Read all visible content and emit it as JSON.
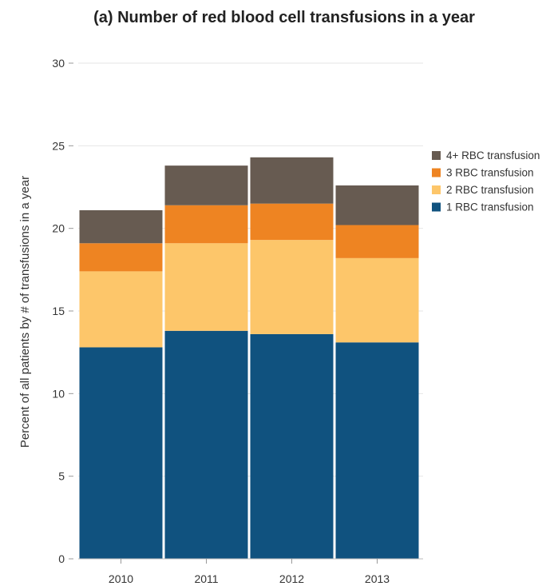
{
  "chart_data": {
    "type": "bar",
    "stacked": true,
    "title": "(a)  Number of red blood cell transfusions in a year",
    "xlabel": "",
    "ylabel": "Percent of all patients by # of transfusions in a year",
    "categories": [
      "2010",
      "2011",
      "2012",
      "2013"
    ],
    "ylim": [
      0,
      30
    ],
    "yticks": [
      0,
      5,
      10,
      15,
      20,
      25,
      30
    ],
    "grid": true,
    "legend_position": "right",
    "series": [
      {
        "name": "1 RBC transfusion",
        "color": "#10527f",
        "values": [
          12.8,
          13.8,
          13.6,
          13.1
        ]
      },
      {
        "name": "2 RBC transfusion",
        "color": "#fdc66a",
        "values": [
          4.6,
          5.3,
          5.7,
          5.1
        ]
      },
      {
        "name": "3 RBC transfusion",
        "color": "#ee8422",
        "values": [
          1.7,
          2.3,
          2.2,
          2.0
        ]
      },
      {
        "name": "4+ RBC transfusion",
        "color": "#675b51",
        "values": [
          2.0,
          2.4,
          2.8,
          2.4
        ]
      }
    ]
  }
}
